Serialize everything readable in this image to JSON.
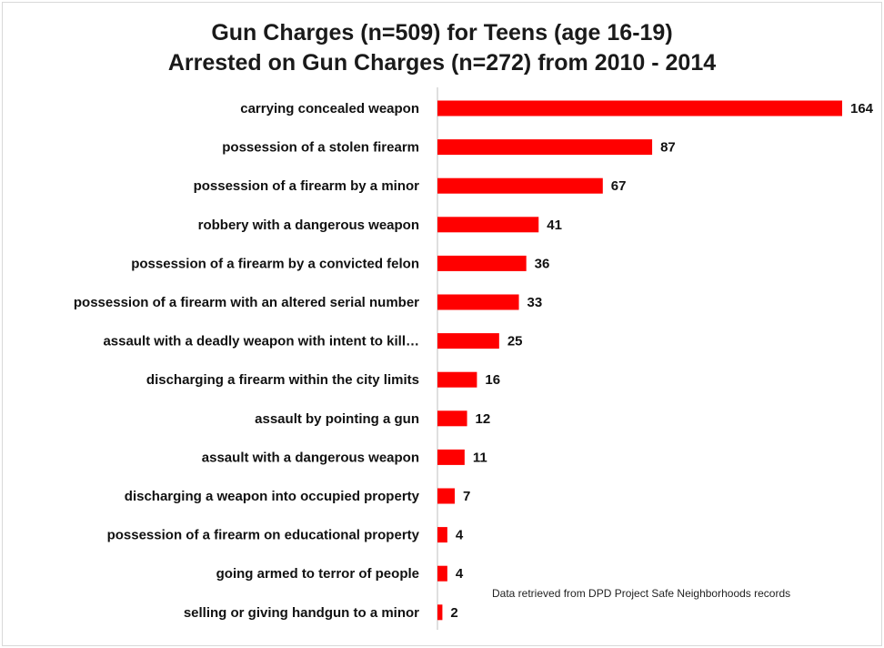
{
  "chart_data": {
    "type": "bar",
    "orientation": "horizontal",
    "title": "Gun Charges (n=509) for Teens (age 16-19)",
    "subtitle": "Arrested on Gun Charges (n=272) from 2010 - 2014",
    "categories": [
      "carrying concealed weapon",
      "possession of a stolen firearm",
      "possession of a firearm by a minor",
      "robbery with a dangerous weapon",
      "possession of a firearm by a convicted felon",
      "possession of a firearm with an altered serial number",
      "assault with a deadly weapon with intent to kill…",
      "discharging a firearm within the city limits",
      "assault by pointing a gun",
      "assault with a dangerous weapon",
      "discharging a weapon into occupied property",
      "possession of a firearm on educational property",
      "going armed to terror of people",
      "selling or giving handgun to a minor"
    ],
    "values": [
      164,
      87,
      67,
      41,
      36,
      33,
      25,
      16,
      12,
      11,
      7,
      4,
      4,
      2
    ],
    "bar_color": "#ff0000",
    "xlim": [
      0,
      164
    ],
    "grid": false,
    "annotation": "Data retrieved  from DPD Project Safe Neighborhoods  records"
  }
}
